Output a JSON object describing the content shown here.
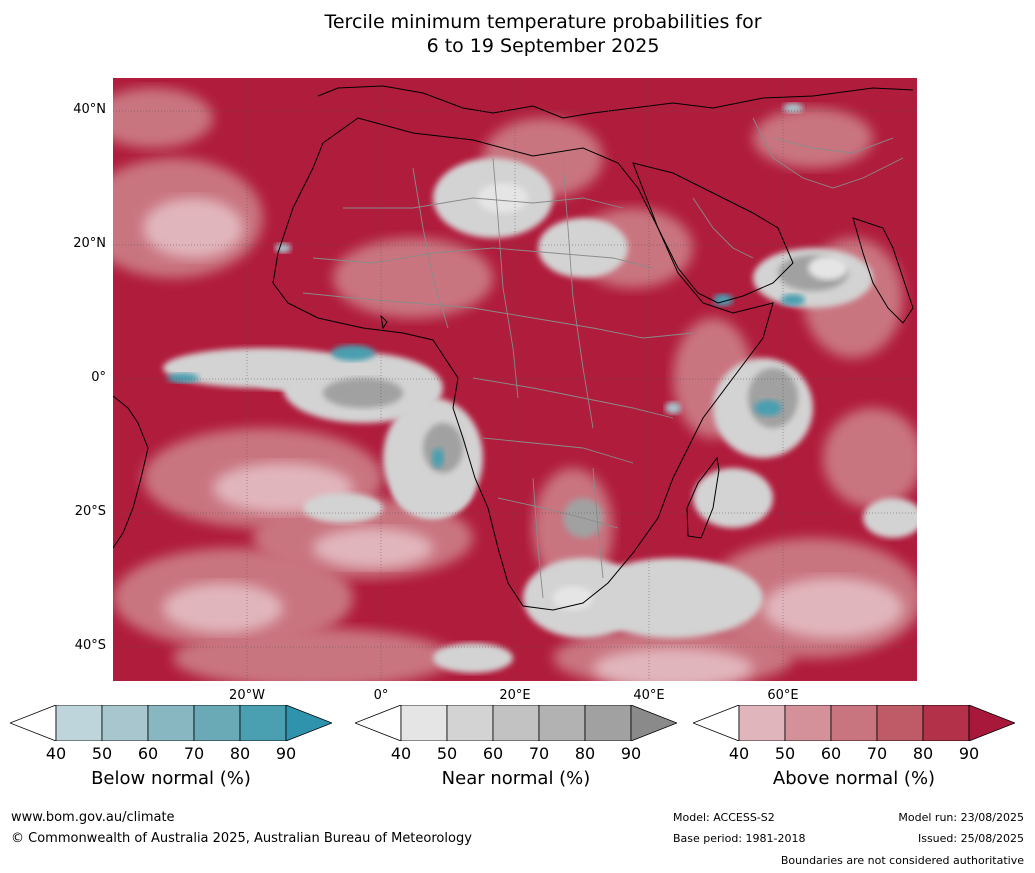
{
  "title_line1": "Tercile minimum temperature probabilities for",
  "title_line2": "6 to 19 September 2025",
  "map": {
    "lat_labels": [
      "40°N",
      "20°N",
      "0°",
      "20°S",
      "40°S"
    ],
    "lon_labels": [
      "20°W",
      "0°",
      "20°E",
      "40°E",
      "60°E"
    ],
    "colors": {
      "above": [
        "#e1b5bc",
        "#d4919a",
        "#c97580",
        "#bf5a67",
        "#b3324a",
        "#a8183a"
      ],
      "near": [
        "#e5e5e5",
        "#d3d3d3",
        "#c2c2c2",
        "#b2b2b2",
        "#a1a1a1",
        "#8a8a8a"
      ],
      "below": [
        "#bfd5dc",
        "#a7c6cd",
        "#89b7c1",
        "#6aaab6",
        "#4a9fb0",
        "#2f93ad"
      ]
    }
  },
  "colorbars": [
    {
      "label": "Below normal (%)",
      "ticks": [
        "40",
        "50",
        "60",
        "70",
        "80",
        "90"
      ],
      "colors": [
        "#bfd5dc",
        "#a7c6cd",
        "#89b7c1",
        "#6aaab6",
        "#4a9fb0",
        "#2f93ad"
      ]
    },
    {
      "label": "Near normal (%)",
      "ticks": [
        "40",
        "50",
        "60",
        "70",
        "80",
        "90"
      ],
      "colors": [
        "#e5e5e5",
        "#d3d3d3",
        "#c2c2c2",
        "#b2b2b2",
        "#a1a1a1",
        "#8a8a8a"
      ]
    },
    {
      "label": "Above normal (%)",
      "ticks": [
        "40",
        "50",
        "60",
        "70",
        "80",
        "90"
      ],
      "colors": [
        "#e1b5bc",
        "#d4919a",
        "#c97580",
        "#bf5a67",
        "#b3324a",
        "#a8183a"
      ]
    }
  ],
  "footer": {
    "website": "www.bom.gov.au/climate",
    "copyright": "© Commonwealth of Australia 2025, Australian Bureau of Meteorology",
    "model": "Model: ACCESS-S2",
    "base_period": "Base period: 1981-2018",
    "model_run": "Model run: 23/08/2025",
    "issued": "Issued: 25/08/2025",
    "disclaimer": "Boundaries are not considered authoritative"
  }
}
